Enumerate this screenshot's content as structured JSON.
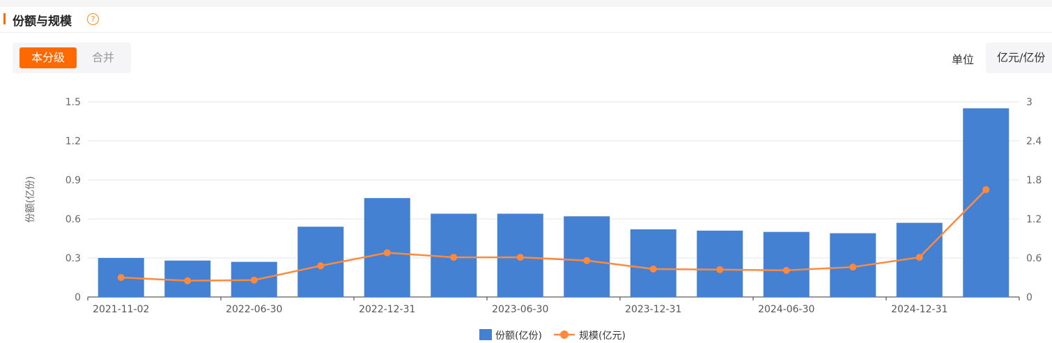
{
  "header": {
    "title": "份额与规模",
    "help_icon": "?"
  },
  "toggle": {
    "active": "本分级",
    "inactive": "合并"
  },
  "unit": {
    "label": "单位",
    "value": "亿元/亿份"
  },
  "colors": {
    "bar": "#4481d2",
    "line": "#ff8a3d",
    "accent": "#ff6a00"
  },
  "chart_data": {
    "type": "bar+line",
    "categories": [
      "2021-11-02",
      "",
      "2022-06-30",
      "",
      "2022-12-31",
      "",
      "2023-06-30",
      "",
      "2023-12-31",
      "",
      "2024-06-30",
      "",
      "2024-12-31",
      ""
    ],
    "series": [
      {
        "name": "份额(亿份)",
        "type": "bar",
        "axis": "left",
        "values": [
          0.3,
          0.28,
          0.27,
          0.54,
          0.76,
          0.64,
          0.64,
          0.62,
          0.52,
          0.51,
          0.5,
          0.49,
          0.57,
          1.45
        ]
      },
      {
        "name": "规模(亿元)",
        "type": "line",
        "axis": "right",
        "values": [
          0.3,
          0.25,
          0.26,
          0.48,
          0.68,
          0.61,
          0.61,
          0.56,
          0.43,
          0.42,
          0.41,
          0.46,
          0.61,
          1.65
        ]
      }
    ],
    "ylabel": "份额(亿份)",
    "ylim_left": [
      0,
      1.5
    ],
    "ylim_right": [
      0,
      3
    ],
    "yticks_left": [
      "0",
      "0.3",
      "0.6",
      "0.9",
      "1.2",
      "1.5"
    ],
    "yticks_right": [
      "0",
      "0.6",
      "1.2",
      "1.8",
      "2.4",
      "3"
    ],
    "grid": true,
    "legend": "bottom-center"
  }
}
